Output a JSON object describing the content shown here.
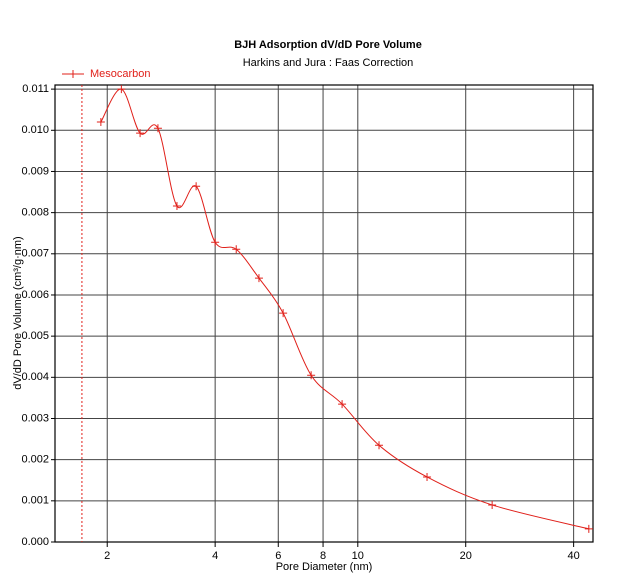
{
  "chart_data": {
    "type": "line",
    "title": "BJH Adsorption dV/dD Pore Volume",
    "subtitle": "Harkins and Jura : Faas Correction",
    "x_label": "Pore Diameter (nm)",
    "y_label": "dV/dD Pore Volume (cm³/g·nm)",
    "x_scale": "log",
    "grid": true,
    "legend_position": "top-left",
    "xlim": [
      1.43,
      45.3
    ],
    "ylim": [
      0,
      0.0111
    ],
    "xticks": [
      2,
      4,
      6,
      8,
      10,
      20,
      40
    ],
    "yticks": [
      {
        "value": 0,
        "label": "0.000"
      },
      0.001,
      0.002,
      0.003,
      0.004,
      0.005,
      0.006,
      0.007,
      0.008,
      0.009,
      {
        "value": 0.01,
        "label": "0.010"
      },
      0.011
    ],
    "reference_line_x": 1.7,
    "series": [
      {
        "name": "Mesocarbon",
        "color": "#e0201a",
        "x": [
          1.92,
          2.19,
          2.47,
          2.77,
          3.13,
          3.54,
          4.0,
          4.58,
          5.3,
          6.19,
          7.41,
          9.04,
          11.46,
          15.6,
          23.7,
          44.1
        ],
        "values": [
          0.0102,
          0.011,
          0.00993,
          0.01005,
          0.00816,
          0.00864,
          0.00728,
          0.00711,
          0.00641,
          0.00556,
          0.00405,
          0.00335,
          0.00235,
          0.00158,
          0.0009,
          0.00032
        ]
      }
    ]
  }
}
